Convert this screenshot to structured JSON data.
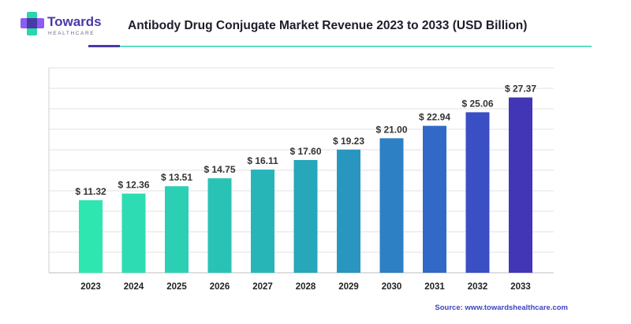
{
  "brand": {
    "name": "Towards",
    "tagline": "HEALTHCARE",
    "colors": {
      "purple": "#4a3aa8",
      "teal": "#2ad6ad",
      "violet": "#8b5cf6"
    }
  },
  "header": {
    "title": "Antibody Drug Conjugate Market Revenue 2023 to 2033 (USD Billion)",
    "underline_colors": [
      "#4a3aa8",
      "#2ad6ad"
    ]
  },
  "source": "Source: www.towardshealthcare.com",
  "chart_data": {
    "type": "bar",
    "title": "Antibody Drug Conjugate Market Revenue 2023 to 2033 (USD Billion)",
    "xlabel": "",
    "ylabel": "",
    "ylim": [
      0,
      32
    ],
    "grid": true,
    "categories": [
      "2023",
      "2024",
      "2025",
      "2026",
      "2027",
      "2028",
      "2029",
      "2030",
      "2031",
      "2032",
      "2033"
    ],
    "values": [
      11.32,
      12.36,
      13.51,
      14.75,
      16.11,
      17.6,
      19.23,
      21.0,
      22.94,
      25.06,
      27.37
    ],
    "value_labels": [
      "$ 11.32",
      "$ 12.36",
      "$ 13.51",
      "$ 14.75",
      "$ 16.11",
      "$ 17.60",
      "$ 19.23",
      "$ 21.00",
      "$ 22.94",
      "$ 25.06",
      "$ 27.37"
    ],
    "bar_colors": [
      "#2ee6b0",
      "#2ddcb2",
      "#2bd0b4",
      "#29c3b6",
      "#28b5b8",
      "#27a7ba",
      "#2896bf",
      "#2d80c4",
      "#3369c6",
      "#3a4fc4",
      "#4236b6"
    ]
  }
}
